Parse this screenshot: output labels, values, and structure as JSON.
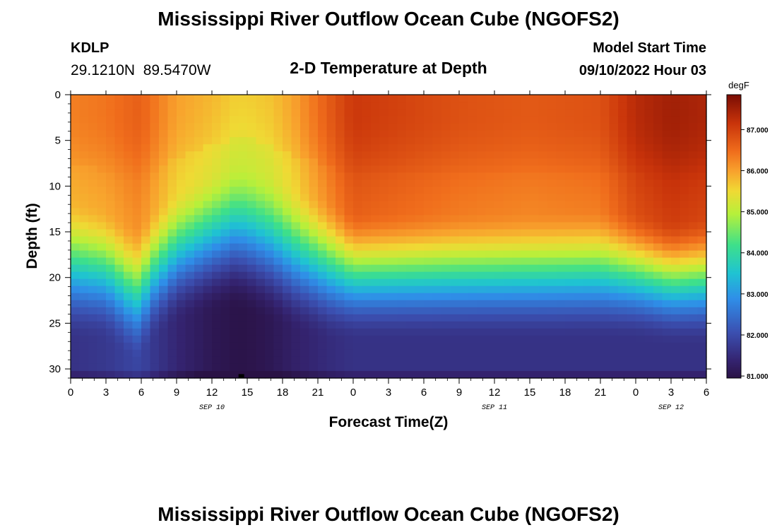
{
  "header": {
    "title": "Mississippi River Outflow Ocean Cube (NGOFS2)",
    "station_id": "KDLP",
    "station_coords": "29.1210N  89.5470W",
    "subtitle": "2-D Temperature at Depth",
    "model_start_label": "Model Start Time",
    "model_start_value": "09/10/2022 Hour 03"
  },
  "footer": {
    "title": "Mississippi River Outflow Ocean Cube (NGOFS2)"
  },
  "chart_data": {
    "type": "heatmap",
    "title": "2-D Temperature at Depth",
    "xlabel": "Forecast Time(Z)",
    "ylabel": "Depth (ft)",
    "x_ticks": [
      "0",
      "3",
      "6",
      "9",
      "12",
      "15",
      "18",
      "21",
      "0",
      "3",
      "6",
      "9",
      "12",
      "15",
      "18",
      "21",
      "0",
      "3",
      "6"
    ],
    "x_tick_hours": [
      0,
      3,
      6,
      9,
      12,
      15,
      18,
      21,
      24,
      27,
      30,
      33,
      36,
      39,
      42,
      45,
      48,
      51,
      54
    ],
    "x_range_hours": [
      0,
      54
    ],
    "date_labels": [
      {
        "label": "SEP 10",
        "hour": 12
      },
      {
        "label": "SEP 11",
        "hour": 36
      },
      {
        "label": "SEP 12",
        "hour": 51
      }
    ],
    "y_ticks": [
      0,
      5,
      10,
      15,
      20,
      25,
      30
    ],
    "y_range": [
      0,
      31
    ],
    "y_inverted": true,
    "colorbar": {
      "unit": "degF",
      "ticks": [
        "81.000",
        "82.000",
        "83.000",
        "84.000",
        "85.000",
        "86.000",
        "87.000"
      ],
      "tick_values": [
        81,
        82,
        83,
        84,
        85,
        86,
        87
      ],
      "range": [
        80.95,
        87.85
      ],
      "stops": [
        [
          0.0,
          "#2a1245"
        ],
        [
          0.06,
          "#34236f"
        ],
        [
          0.16,
          "#3b4fb0"
        ],
        [
          0.28,
          "#2f8ee8"
        ],
        [
          0.37,
          "#1fc3d2"
        ],
        [
          0.47,
          "#3ee08a"
        ],
        [
          0.58,
          "#b7f03a"
        ],
        [
          0.66,
          "#f0d934"
        ],
        [
          0.73,
          "#f8a22d"
        ],
        [
          0.8,
          "#f06d1c"
        ],
        [
          0.9,
          "#c8330a"
        ],
        [
          1.0,
          "#7a0d04"
        ]
      ]
    },
    "cell_hours": 0.75,
    "cell_depth": 0.775,
    "series_times": [
      0,
      3,
      5.5,
      6,
      7,
      9,
      12,
      14,
      15,
      17,
      19,
      22,
      24,
      27,
      33,
      39,
      45,
      48,
      51,
      54
    ],
    "surface_temp": [
      86.3,
      86.4,
      86.6,
      86.6,
      86.4,
      86.0,
      85.8,
      85.6,
      85.6,
      85.7,
      86.0,
      86.7,
      87.1,
      87.0,
      86.8,
      86.7,
      86.8,
      87.3,
      87.5,
      87.4
    ],
    "mixed_depth": [
      11.0,
      12.0,
      14.0,
      13.5,
      12.0,
      10.0,
      8.0,
      7.0,
      7.0,
      8.0,
      9.5,
      11.0,
      12.5,
      12.5,
      12.5,
      12.5,
      12.0,
      12.5,
      13.5,
      13.0
    ],
    "cline_depth": [
      21.0,
      21.0,
      23.5,
      23.0,
      21.0,
      19.0,
      18.0,
      17.5,
      18.0,
      19.0,
      20.0,
      21.0,
      21.0,
      21.0,
      21.0,
      21.0,
      21.0,
      21.0,
      21.5,
      21.5
    ],
    "bottom_temp": [
      81.6,
      81.7,
      81.9,
      81.9,
      81.7,
      81.4,
      81.1,
      81.0,
      81.0,
      81.1,
      81.3,
      81.5,
      81.6,
      81.6,
      81.6,
      81.6,
      81.6,
      81.6,
      81.6,
      81.6
    ],
    "missing_marker": {
      "hour": 14.5,
      "depth": 30.8
    }
  }
}
